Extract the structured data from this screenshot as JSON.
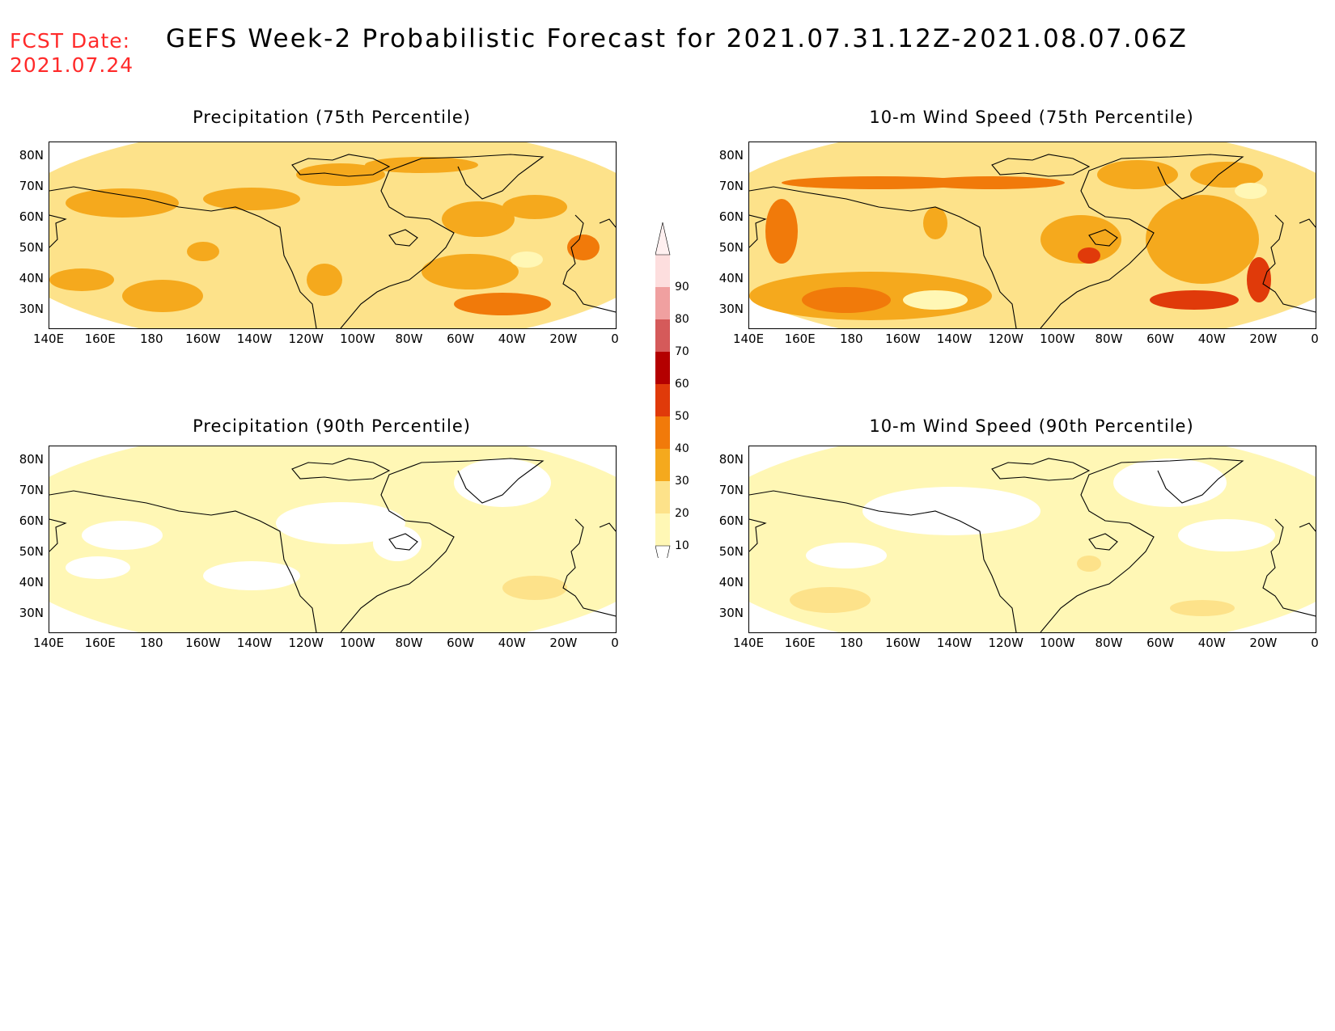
{
  "header": {
    "fcst_label": "FCST Date:",
    "fcst_date": "2021.07.24",
    "title": "GEFS Week-2 Probabilistic Forecast for 2021.07.31.12Z-2021.08.07.06Z"
  },
  "panels": [
    {
      "title": "Precipitation (75th Percentile)",
      "intensity": "medium"
    },
    {
      "title": "10-m Wind Speed (75th Percentile)",
      "intensity": "high"
    },
    {
      "title": "Precipitation (90th Percentile)",
      "intensity": "low"
    },
    {
      "title": "10-m Wind Speed (90th Percentile)",
      "intensity": "low"
    }
  ],
  "lon_labels": [
    "140E",
    "160E",
    "180",
    "160W",
    "140W",
    "120W",
    "100W",
    "80W",
    "60W",
    "40W",
    "20W",
    "0"
  ],
  "lat_labels": [
    "80N",
    "70N",
    "60N",
    "50N",
    "40N",
    "30N"
  ],
  "colorbar": {
    "labels": [
      "10",
      "20",
      "30",
      "40",
      "50",
      "60",
      "70",
      "80",
      "90"
    ],
    "colors": [
      "#fff7b5",
      "#fde28a",
      "#f5a91d",
      "#f17a0a",
      "#e03a0a",
      "#b40000",
      "#d55a5a",
      "#f0a0a0",
      "#fddede"
    ]
  }
}
